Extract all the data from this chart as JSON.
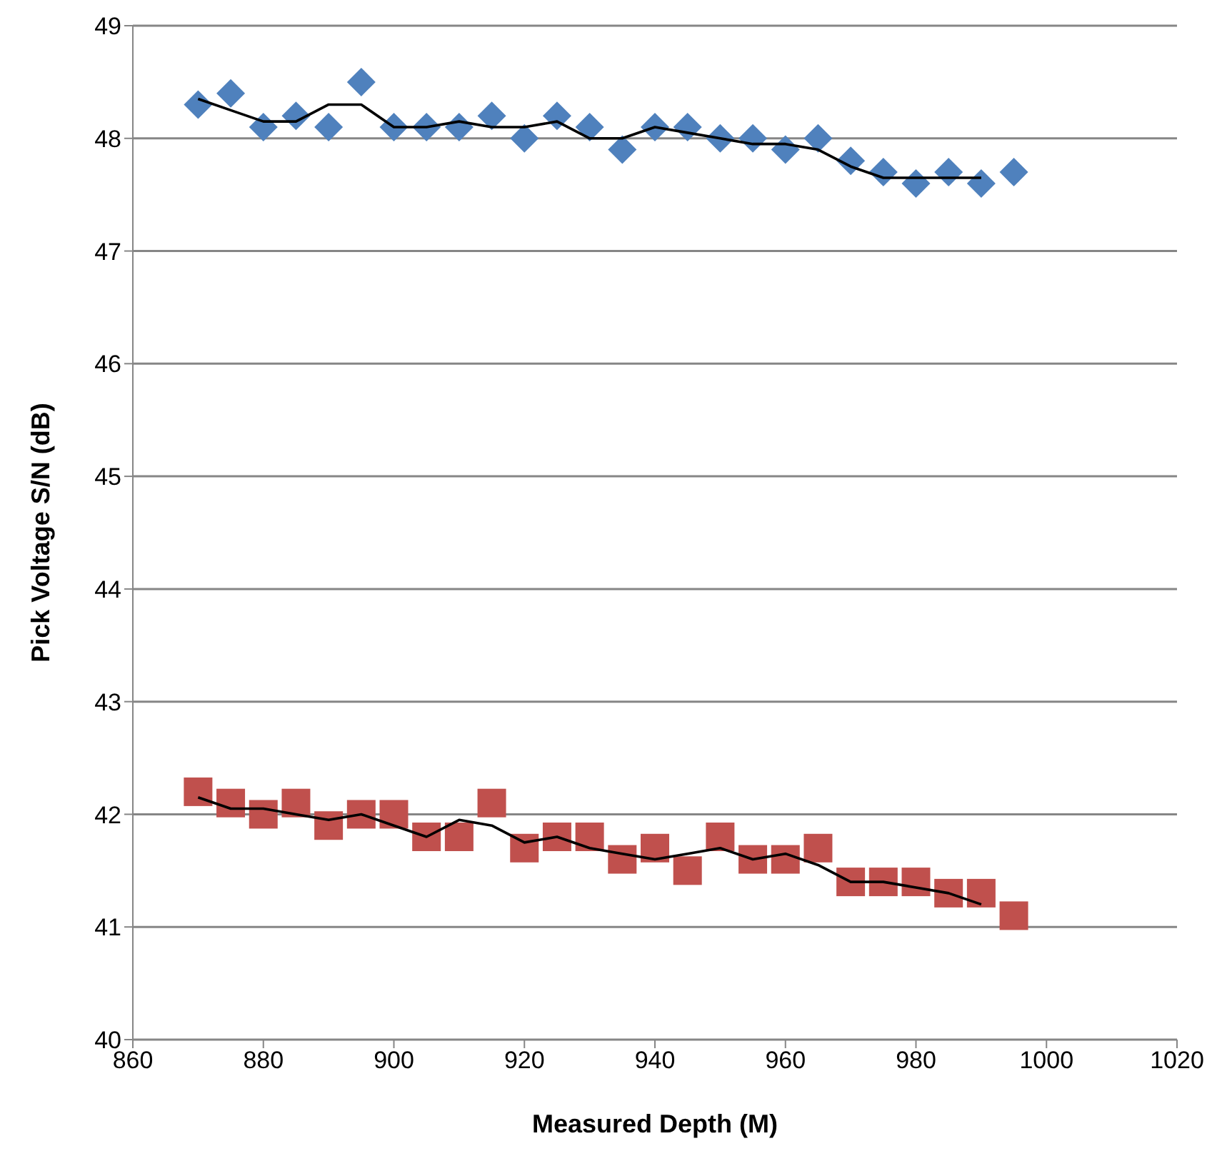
{
  "chart_data": {
    "type": "scatter",
    "xlabel": "Measured Depth (M)",
    "ylabel": "Pick Voltage  S/N (dB)",
    "x": [
      870,
      875,
      880,
      885,
      890,
      895,
      900,
      905,
      910,
      915,
      920,
      925,
      930,
      935,
      940,
      945,
      950,
      955,
      960,
      965,
      970,
      975,
      980,
      985,
      990,
      995
    ],
    "series": [
      {
        "marker": "diamond",
        "color": "#4f81bd",
        "values": [
          48.3,
          48.4,
          48.1,
          48.2,
          48.1,
          48.5,
          48.1,
          48.1,
          48.1,
          48.2,
          48.0,
          48.2,
          48.1,
          47.9,
          48.1,
          48.1,
          48.0,
          48.0,
          47.9,
          48.0,
          47.8,
          47.7,
          47.6,
          47.7,
          47.6,
          47.7
        ]
      },
      {
        "marker": "square",
        "color": "#c0504d",
        "values": [
          42.2,
          42.1,
          42.0,
          42.1,
          41.9,
          42.0,
          42.0,
          41.8,
          41.8,
          42.1,
          41.7,
          41.8,
          41.8,
          41.6,
          41.7,
          41.5,
          41.8,
          41.6,
          41.6,
          41.7,
          41.4,
          41.4,
          41.4,
          41.3,
          41.3,
          41.1
        ]
      },
      {
        "type": "line",
        "marker": "none",
        "color": "#000000",
        "x": [
          870,
          875,
          880,
          885,
          890,
          895,
          900,
          905,
          910,
          915,
          920,
          925,
          930,
          935,
          940,
          945,
          950,
          955,
          960,
          965,
          970,
          975,
          980,
          985,
          990
        ],
        "values": [
          48.35,
          48.25,
          48.15,
          48.15,
          48.3,
          48.3,
          48.1,
          48.1,
          48.15,
          48.1,
          48.1,
          48.15,
          48.0,
          48.0,
          48.1,
          48.05,
          48.0,
          47.95,
          47.95,
          47.9,
          47.75,
          47.65,
          47.65,
          47.65,
          47.65
        ]
      },
      {
        "type": "line",
        "marker": "none",
        "color": "#000000",
        "x": [
          870,
          875,
          880,
          885,
          890,
          895,
          900,
          905,
          910,
          915,
          920,
          925,
          930,
          935,
          940,
          945,
          950,
          955,
          960,
          965,
          970,
          975,
          980,
          985,
          990
        ],
        "values": [
          42.15,
          42.05,
          42.05,
          42.0,
          41.95,
          42.0,
          41.9,
          41.8,
          41.95,
          41.9,
          41.75,
          41.8,
          41.7,
          41.65,
          41.6,
          41.65,
          41.7,
          41.6,
          41.65,
          41.55,
          41.4,
          41.4,
          41.35,
          41.3,
          41.2
        ]
      }
    ],
    "xlim": [
      860,
      1020
    ],
    "xticks": [
      860,
      880,
      900,
      920,
      940,
      960,
      980,
      1000,
      1020
    ],
    "ylim": [
      40,
      49
    ],
    "yticks": [
      40,
      41,
      42,
      43,
      44,
      45,
      46,
      47,
      48,
      49
    ],
    "grid": "y",
    "legend": false
  }
}
